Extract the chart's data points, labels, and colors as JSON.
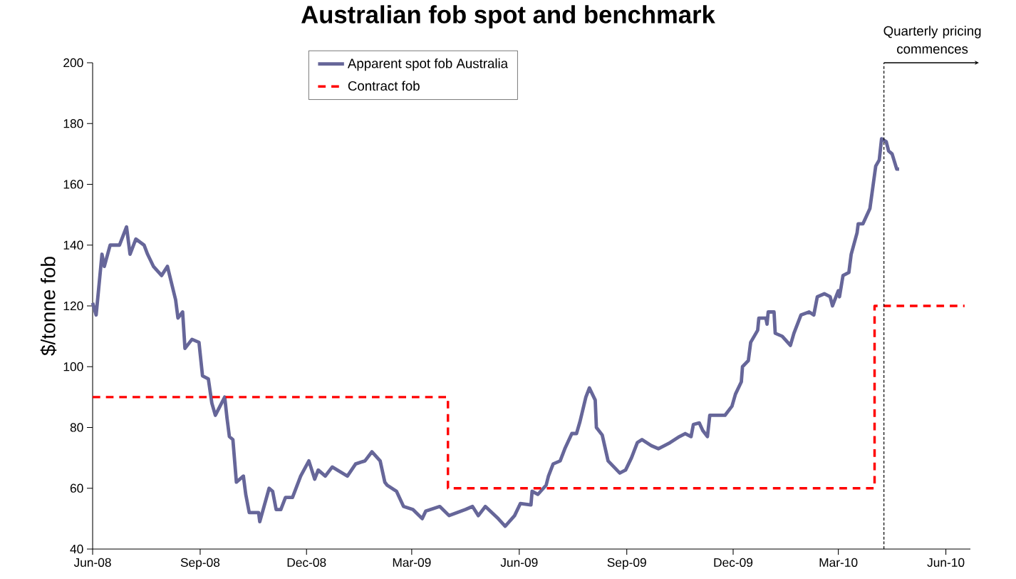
{
  "chart_data": {
    "type": "line",
    "title": "Australian fob spot and benchmark",
    "ylabel": "$/tonne fob",
    "xlim": [
      "2008-06-01",
      "2010-06-22"
    ],
    "xticks": [
      {
        "value": "2008-06-01",
        "label": "Jun-08"
      },
      {
        "value": "2008-09-01",
        "label": "Sep-08"
      },
      {
        "value": "2008-12-01",
        "label": "Dec-08"
      },
      {
        "value": "2009-03-01",
        "label": "Mar-09"
      },
      {
        "value": "2009-06-01",
        "label": "Jun-09"
      },
      {
        "value": "2009-09-01",
        "label": "Sep-09"
      },
      {
        "value": "2009-12-01",
        "label": "Dec-09"
      },
      {
        "value": "2010-03-01",
        "label": "Mar-10"
      },
      {
        "value": "2010-06-01",
        "label": "Jun-10"
      }
    ],
    "ylim": [
      40,
      200
    ],
    "yticks": [
      40,
      60,
      80,
      100,
      120,
      140,
      160,
      180,
      200
    ],
    "legend": "top",
    "series": [
      {
        "name": "Apparent spot fob Australia",
        "color": "#666699",
        "line_style": "solid",
        "x": [
          "2008-06-01",
          "2008-06-04",
          "2008-06-09",
          "2008-06-11",
          "2008-06-16",
          "2008-06-24",
          "2008-06-30",
          "2008-07-03",
          "2008-07-08",
          "2008-07-15",
          "2008-07-18",
          "2008-07-23",
          "2008-07-30",
          "2008-08-04",
          "2008-08-11",
          "2008-08-13",
          "2008-08-17",
          "2008-08-19",
          "2008-08-25",
          "2008-08-31",
          "2008-09-03",
          "2008-09-08",
          "2008-09-11",
          "2008-09-14",
          "2008-09-22",
          "2008-09-24",
          "2008-09-26",
          "2008-09-29",
          "2008-10-02",
          "2008-10-08",
          "2008-10-10",
          "2008-10-13",
          "2008-10-21",
          "2008-10-22",
          "2008-10-30",
          "2008-11-02",
          "2008-11-05",
          "2008-11-09",
          "2008-11-13",
          "2008-11-19",
          "2008-11-26",
          "2008-12-03",
          "2008-12-08",
          "2008-12-11",
          "2008-12-17",
          "2008-12-23",
          "2009-01-05",
          "2009-01-12",
          "2009-01-20",
          "2009-01-26",
          "2009-02-02",
          "2009-02-06",
          "2009-02-08",
          "2009-02-16",
          "2009-02-22",
          "2009-03-02",
          "2009-03-10",
          "2009-03-13",
          "2009-03-25",
          "2009-04-02",
          "2009-04-16",
          "2009-04-22",
          "2009-04-27",
          "2009-05-03",
          "2009-05-14",
          "2009-05-20",
          "2009-05-28",
          "2009-06-02",
          "2009-06-11",
          "2009-06-12",
          "2009-06-17",
          "2009-06-24",
          "2009-06-26",
          "2009-06-30",
          "2009-07-06",
          "2009-07-10",
          "2009-07-16",
          "2009-07-20",
          "2009-07-23",
          "2009-07-28",
          "2009-07-31",
          "2009-08-05",
          "2009-08-06",
          "2009-08-11",
          "2009-08-16",
          "2009-08-26",
          "2009-08-31",
          "2009-09-05",
          "2009-09-10",
          "2009-09-14",
          "2009-09-22",
          "2009-09-28",
          "2009-10-08",
          "2009-10-16",
          "2009-10-21",
          "2009-10-26",
          "2009-10-28",
          "2009-11-02",
          "2009-11-05",
          "2009-11-09",
          "2009-11-11",
          "2009-11-17",
          "2009-11-24",
          "2009-11-30",
          "2009-12-03",
          "2009-12-08",
          "2009-12-09",
          "2009-12-14",
          "2009-12-16",
          "2009-12-22",
          "2009-12-23",
          "2009-12-29",
          "2009-12-30",
          "2009-12-31",
          "2010-01-05",
          "2010-01-06",
          "2010-01-12",
          "2010-01-19",
          "2010-01-22",
          "2010-01-28",
          "2010-02-04",
          "2010-02-08",
          "2010-02-11",
          "2010-02-17",
          "2010-02-22",
          "2010-02-24",
          "2010-03-01",
          "2010-03-02",
          "2010-03-05",
          "2010-03-10",
          "2010-03-12",
          "2010-03-17",
          "2010-03-18",
          "2010-03-22",
          "2010-03-28",
          "2010-04-02",
          "2010-04-05",
          "2010-04-07",
          "2010-04-11",
          "2010-04-13",
          "2010-04-16",
          "2010-04-20",
          "2010-04-22"
        ],
        "values": [
          121,
          117,
          137,
          133,
          140,
          140,
          146,
          137,
          142,
          140,
          137,
          133,
          130,
          133,
          122,
          116,
          118,
          106,
          109,
          108,
          97,
          96,
          88,
          84,
          90,
          83,
          77,
          76,
          62,
          64,
          58,
          52,
          52,
          49,
          60,
          59,
          53,
          53,
          57,
          57,
          64,
          69,
          63,
          66,
          64,
          67,
          64,
          68,
          69,
          72,
          69,
          62,
          61,
          59,
          54,
          53,
          50,
          52.5,
          54,
          51,
          53,
          54,
          51,
          54,
          50,
          47.5,
          51,
          55,
          54.5,
          59,
          58,
          61,
          64,
          68,
          69,
          73,
          78,
          78,
          82,
          90,
          93,
          89,
          80,
          77.5,
          69,
          65,
          66,
          70,
          75,
          76,
          74,
          73,
          75,
          77,
          78,
          77,
          81,
          81.5,
          79,
          77,
          84,
          84,
          84,
          87,
          91,
          95,
          100,
          102,
          108,
          112,
          116,
          116,
          114,
          118,
          118,
          111,
          110,
          107,
          111,
          117,
          118,
          117,
          123,
          124,
          123,
          120,
          125,
          123,
          130,
          131,
          137,
          144,
          147,
          147,
          152,
          166,
          168,
          175,
          174,
          171,
          170,
          165,
          165
        ]
      },
      {
        "name": "Contract fob",
        "color": "#ff0000",
        "type": "step",
        "line_style": "dashed",
        "x": [
          "2008-06-01",
          "2009-04-01",
          "2010-04-01",
          "2010-06-17"
        ],
        "values": [
          90,
          60,
          120,
          120
        ]
      }
    ],
    "ref_lines": [
      {
        "axis": "x",
        "value": "2010-04-09",
        "label": "Quarterly pricing commences",
        "color": "#000000",
        "line_style": "dashed"
      }
    ]
  }
}
